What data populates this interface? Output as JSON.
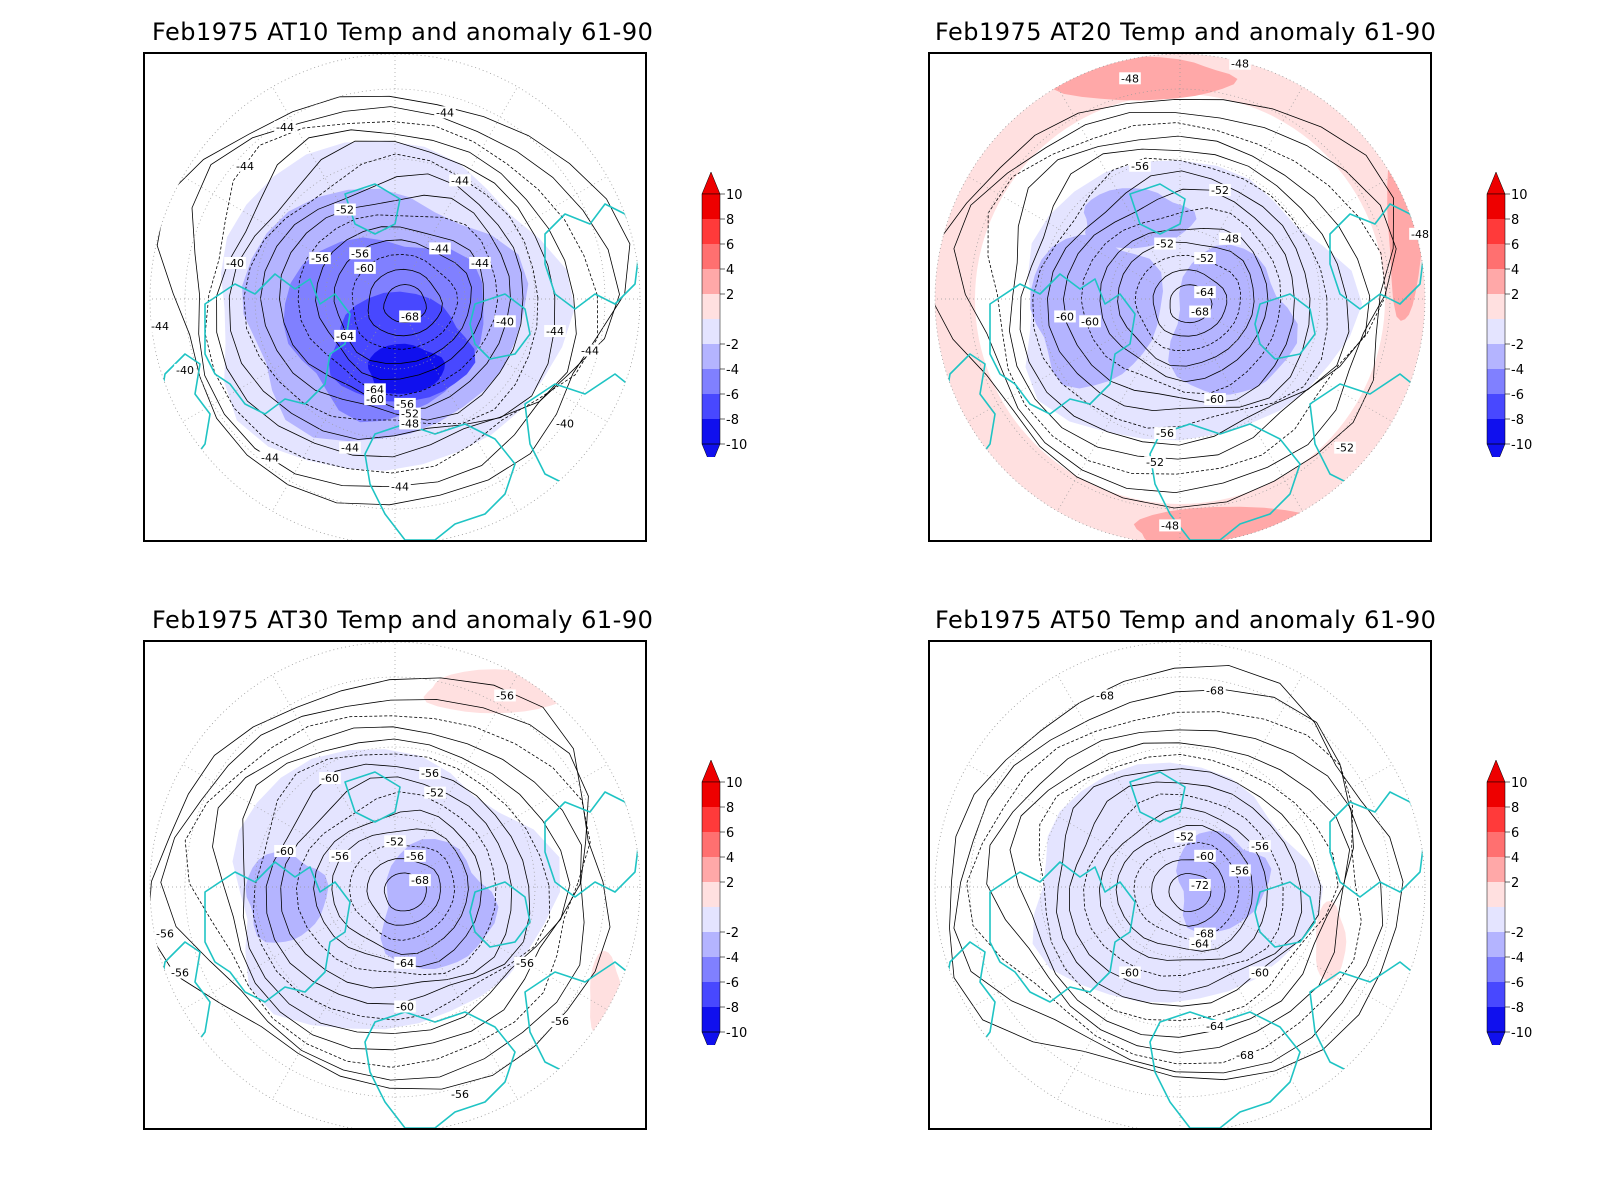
{
  "panels": [
    {
      "title": "Feb1975 AT10 Temp and anomaly 61-90",
      "contour_labels": [
        "-44",
        "-44",
        "-44",
        "-44",
        "-52",
        "-56",
        "-56",
        "-60",
        "-64",
        "-68",
        "-44",
        "-44",
        "-40",
        "-44",
        "-40",
        "-64",
        "-60",
        "-56",
        "-52",
        "-48",
        "-44",
        "-44",
        "-44",
        "-40",
        "-40",
        "-44",
        "-44"
      ],
      "anomaly_pattern": "strong-cold"
    },
    {
      "title": "Feb1975 AT20 Temp and anomaly 61-90",
      "contour_labels": [
        "-48",
        "-48",
        "-56",
        "-52",
        "-52",
        "-48",
        "-52",
        "-64",
        "-68",
        "-60",
        "-60",
        "-60",
        "-56",
        "-52",
        "-52",
        "-48",
        "-48"
      ],
      "anomaly_pattern": "cold-center-warm-ring"
    },
    {
      "title": "Feb1975 AT30 Temp and anomaly 61-90",
      "contour_labels": [
        "-56",
        "-60",
        "-56",
        "-52",
        "-52",
        "-60",
        "-56",
        "-56",
        "-68",
        "-64",
        "-56",
        "-60",
        "-56",
        "-56",
        "-56",
        "-56"
      ],
      "anomaly_pattern": "moderate-cold"
    },
    {
      "title": "Feb1975 AT50 Temp and anomaly 61-90",
      "contour_labels": [
        "-68",
        "-68",
        "-52",
        "-60",
        "-56",
        "-56",
        "-72",
        "-68",
        "-64",
        "-60",
        "-60",
        "-64",
        "-68"
      ],
      "anomaly_pattern": "weak-cold"
    }
  ],
  "colorbar": {
    "labels": [
      "10",
      "8",
      "6",
      "4",
      "2",
      "-2",
      "-4",
      "-6",
      "-8",
      "-10"
    ],
    "colors": [
      "#ee0000",
      "#ff3a3a",
      "#ff7070",
      "#ffa8a8",
      "#ffe0e0",
      "#ffffff",
      "#e4e4ff",
      "#b4b4ff",
      "#8080ff",
      "#4848ff",
      "#1010ee"
    ]
  },
  "colors": {
    "coast": "#1fc4c4",
    "contour": "#000000",
    "grid": "#999999"
  }
}
